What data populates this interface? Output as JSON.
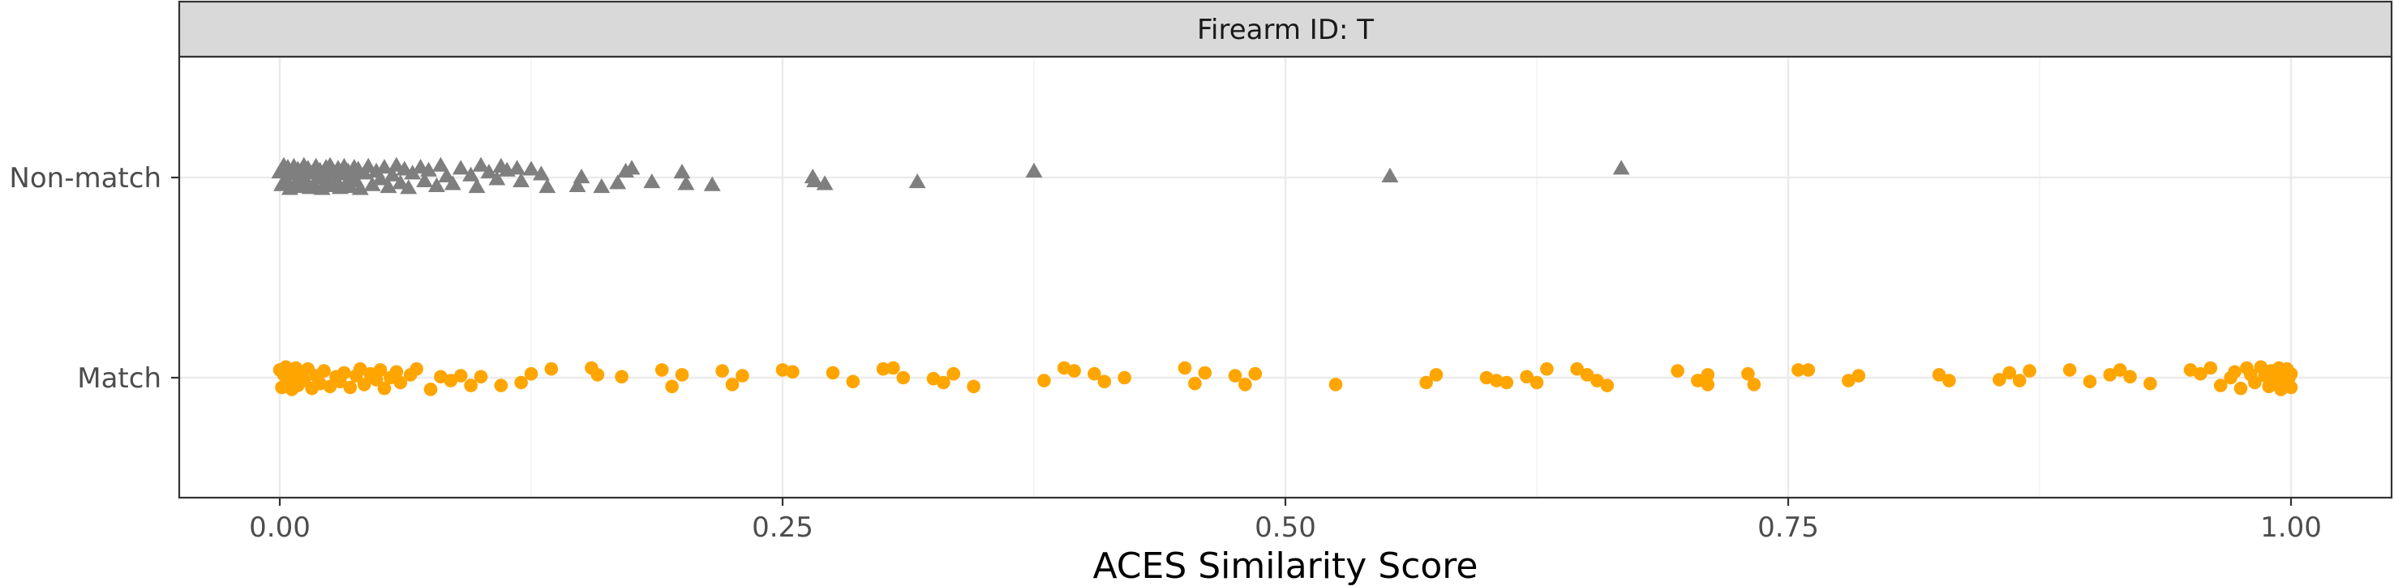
{
  "chart_data": {
    "type": "scatter",
    "panel_title": "Firearm ID: T",
    "xlabel": "ACES Similarity Score",
    "ylabel": "",
    "xlim": [
      -0.05,
      1.05
    ],
    "x_ticks": [
      0.0,
      0.25,
      0.5,
      0.75,
      1.0
    ],
    "x_tick_labels": [
      "0.00",
      "0.25",
      "0.50",
      "0.75",
      "1.00"
    ],
    "categories": [
      "Non-match",
      "Match"
    ],
    "grid": true,
    "series": [
      {
        "category": "Non-match",
        "marker": "triangle",
        "color": "#7f7f7f",
        "points": [
          [
            0.0,
            0.05
          ],
          [
            0.001,
            -0.08
          ],
          [
            0.002,
            0.12
          ],
          [
            0.003,
            -0.02
          ],
          [
            0.004,
            0.1
          ],
          [
            0.005,
            -0.12
          ],
          [
            0.006,
            0.03
          ],
          [
            0.007,
            0.11
          ],
          [
            0.008,
            -0.06
          ],
          [
            0.009,
            0.08
          ],
          [
            0.01,
            -0.1
          ],
          [
            0.011,
            0.01
          ],
          [
            0.012,
            0.12
          ],
          [
            0.013,
            -0.04
          ],
          [
            0.014,
            0.09
          ],
          [
            0.015,
            -0.11
          ],
          [
            0.016,
            0.04
          ],
          [
            0.017,
            -0.07
          ],
          [
            0.018,
            0.11
          ],
          [
            0.019,
            -0.01
          ],
          [
            0.02,
            0.07
          ],
          [
            0.021,
            -0.12
          ],
          [
            0.022,
            0.02
          ],
          [
            0.023,
            0.1
          ],
          [
            0.024,
            -0.05
          ],
          [
            0.025,
            0.12
          ],
          [
            0.026,
            -0.09
          ],
          [
            0.027,
            0.05
          ],
          [
            0.028,
            -0.03
          ],
          [
            0.029,
            0.09
          ],
          [
            0.03,
            -0.11
          ],
          [
            0.031,
            0.03
          ],
          [
            0.032,
            0.11
          ],
          [
            0.033,
            -0.07
          ],
          [
            0.034,
            0.06
          ],
          [
            0.035,
            -0.1
          ],
          [
            0.036,
            0.0
          ],
          [
            0.037,
            0.1
          ],
          [
            0.038,
            -0.04
          ],
          [
            0.039,
            0.08
          ],
          [
            0.04,
            -0.12
          ],
          [
            0.042,
            0.04
          ],
          [
            0.044,
            0.11
          ],
          [
            0.046,
            -0.08
          ],
          [
            0.048,
            0.06
          ],
          [
            0.05,
            -0.02
          ],
          [
            0.052,
            0.1
          ],
          [
            0.054,
            -0.1
          ],
          [
            0.056,
            0.02
          ],
          [
            0.058,
            0.12
          ],
          [
            0.06,
            -0.06
          ],
          [
            0.062,
            0.08
          ],
          [
            0.064,
            -0.11
          ],
          [
            0.066,
            0.04
          ],
          [
            0.07,
            0.1
          ],
          [
            0.072,
            -0.04
          ],
          [
            0.074,
            0.07
          ],
          [
            0.078,
            -0.09
          ],
          [
            0.08,
            0.12
          ],
          [
            0.083,
            0.01
          ],
          [
            0.086,
            -0.07
          ],
          [
            0.09,
            0.09
          ],
          [
            0.095,
            0.02
          ],
          [
            0.098,
            -0.1
          ],
          [
            0.1,
            0.12
          ],
          [
            0.104,
            0.05
          ],
          [
            0.108,
            -0.02
          ],
          [
            0.11,
            0.11
          ],
          [
            0.113,
            0.07
          ],
          [
            0.118,
            0.09
          ],
          [
            0.12,
            -0.04
          ],
          [
            0.125,
            0.08
          ],
          [
            0.13,
            0.03
          ],
          [
            0.133,
            -0.1
          ],
          [
            0.148,
            -0.09
          ],
          [
            0.15,
            0.0
          ],
          [
            0.16,
            -0.1
          ],
          [
            0.168,
            -0.06
          ],
          [
            0.172,
            0.06
          ],
          [
            0.175,
            0.09
          ],
          [
            0.185,
            -0.05
          ],
          [
            0.2,
            0.05
          ],
          [
            0.202,
            -0.07
          ],
          [
            0.215,
            -0.08
          ],
          [
            0.265,
            0.0
          ],
          [
            0.266,
            -0.04
          ],
          [
            0.271,
            -0.07
          ],
          [
            0.317,
            -0.05
          ],
          [
            0.375,
            0.06
          ],
          [
            0.552,
            0.01
          ],
          [
            0.667,
            0.09
          ]
        ]
      },
      {
        "category": "Match",
        "marker": "circle",
        "color": "#ffa500",
        "points": [
          [
            0.0,
            0.08
          ],
          [
            0.001,
            -0.1
          ],
          [
            0.002,
            0.03
          ],
          [
            0.003,
            0.11
          ],
          [
            0.004,
            -0.05
          ],
          [
            0.005,
            0.06
          ],
          [
            0.006,
            -0.12
          ],
          [
            0.007,
            0.0
          ],
          [
            0.008,
            0.1
          ],
          [
            0.009,
            -0.08
          ],
          [
            0.01,
            0.04
          ],
          [
            0.012,
            -0.03
          ],
          [
            0.014,
            0.09
          ],
          [
            0.016,
            -0.11
          ],
          [
            0.018,
            0.02
          ],
          [
            0.02,
            -0.06
          ],
          [
            0.022,
            0.07
          ],
          [
            0.025,
            -0.09
          ],
          [
            0.028,
            0.01
          ],
          [
            0.03,
            -0.04
          ],
          [
            0.032,
            0.05
          ],
          [
            0.035,
            -0.1
          ],
          [
            0.038,
            0.02
          ],
          [
            0.04,
            0.09
          ],
          [
            0.042,
            -0.07
          ],
          [
            0.045,
            0.04
          ],
          [
            0.048,
            -0.02
          ],
          [
            0.05,
            0.08
          ],
          [
            0.052,
            -0.11
          ],
          [
            0.055,
            0.0
          ],
          [
            0.058,
            0.06
          ],
          [
            0.06,
            -0.05
          ],
          [
            0.065,
            0.03
          ],
          [
            0.068,
            0.09
          ],
          [
            0.075,
            -0.12
          ],
          [
            0.08,
            0.01
          ],
          [
            0.085,
            -0.03
          ],
          [
            0.09,
            0.02
          ],
          [
            0.095,
            -0.08
          ],
          [
            0.1,
            0.01
          ],
          [
            0.11,
            -0.08
          ],
          [
            0.12,
            -0.05
          ],
          [
            0.125,
            0.04
          ],
          [
            0.135,
            0.09
          ],
          [
            0.155,
            0.1
          ],
          [
            0.158,
            0.03
          ],
          [
            0.17,
            0.01
          ],
          [
            0.19,
            0.08
          ],
          [
            0.195,
            -0.09
          ],
          [
            0.2,
            0.03
          ],
          [
            0.22,
            0.07
          ],
          [
            0.225,
            -0.07
          ],
          [
            0.23,
            0.02
          ],
          [
            0.25,
            0.08
          ],
          [
            0.255,
            0.06
          ],
          [
            0.275,
            0.05
          ],
          [
            0.285,
            -0.04
          ],
          [
            0.3,
            0.09
          ],
          [
            0.305,
            0.1
          ],
          [
            0.31,
            0.0
          ],
          [
            0.325,
            -0.01
          ],
          [
            0.33,
            -0.05
          ],
          [
            0.335,
            0.04
          ],
          [
            0.345,
            -0.09
          ],
          [
            0.38,
            -0.03
          ],
          [
            0.39,
            0.1
          ],
          [
            0.395,
            0.07
          ],
          [
            0.405,
            0.04
          ],
          [
            0.41,
            -0.04
          ],
          [
            0.42,
            0.0
          ],
          [
            0.45,
            0.1
          ],
          [
            0.455,
            -0.06
          ],
          [
            0.46,
            0.05
          ],
          [
            0.475,
            0.02
          ],
          [
            0.48,
            -0.07
          ],
          [
            0.485,
            0.04
          ],
          [
            0.525,
            -0.07
          ],
          [
            0.57,
            -0.05
          ],
          [
            0.575,
            0.03
          ],
          [
            0.6,
            0.0
          ],
          [
            0.605,
            -0.03
          ],
          [
            0.61,
            -0.05
          ],
          [
            0.62,
            0.01
          ],
          [
            0.625,
            -0.05
          ],
          [
            0.63,
            0.09
          ],
          [
            0.645,
            0.09
          ],
          [
            0.65,
            0.03
          ],
          [
            0.655,
            -0.03
          ],
          [
            0.66,
            -0.08
          ],
          [
            0.695,
            0.07
          ],
          [
            0.705,
            -0.03
          ],
          [
            0.71,
            -0.07
          ],
          [
            0.71,
            0.03
          ],
          [
            0.73,
            0.04
          ],
          [
            0.733,
            -0.07
          ],
          [
            0.755,
            0.08
          ],
          [
            0.76,
            0.08
          ],
          [
            0.78,
            -0.03
          ],
          [
            0.785,
            0.02
          ],
          [
            0.825,
            0.03
          ],
          [
            0.83,
            -0.03
          ],
          [
            0.855,
            -0.02
          ],
          [
            0.86,
            0.05
          ],
          [
            0.865,
            -0.03
          ],
          [
            0.87,
            0.07
          ],
          [
            0.89,
            0.08
          ],
          [
            0.9,
            -0.04
          ],
          [
            0.91,
            0.03
          ],
          [
            0.915,
            0.08
          ],
          [
            0.92,
            0.01
          ],
          [
            0.93,
            -0.06
          ],
          [
            0.95,
            0.08
          ],
          [
            0.955,
            0.04
          ],
          [
            0.96,
            0.1
          ],
          [
            0.965,
            -0.08
          ],
          [
            0.97,
            0.0
          ],
          [
            0.972,
            0.06
          ],
          [
            0.975,
            -0.11
          ],
          [
            0.978,
            0.1
          ],
          [
            0.98,
            0.03
          ],
          [
            0.982,
            -0.05
          ],
          [
            0.985,
            0.11
          ],
          [
            0.987,
            0.02
          ],
          [
            0.989,
            -0.09
          ],
          [
            0.99,
            0.07
          ],
          [
            0.992,
            -0.02
          ],
          [
            0.994,
            0.1
          ],
          [
            0.995,
            -0.12
          ],
          [
            0.996,
            0.05
          ],
          [
            0.997,
            -0.06
          ],
          [
            0.998,
            0.09
          ],
          [
            0.999,
            0.0
          ],
          [
            1.0,
            -0.1
          ],
          [
            1.0,
            0.04
          ]
        ]
      }
    ]
  }
}
